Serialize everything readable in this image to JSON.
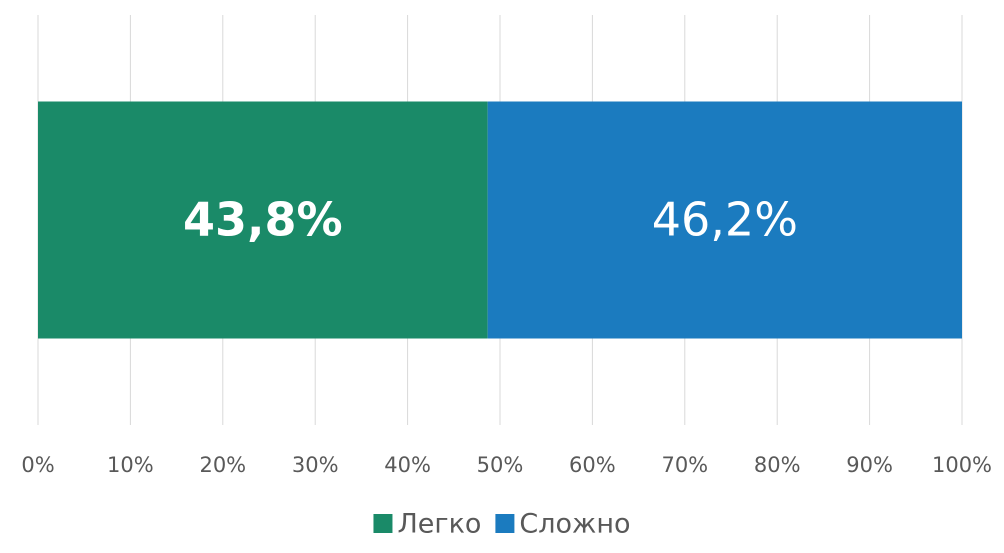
{
  "chart_data": {
    "type": "bar",
    "orientation": "horizontal",
    "percent_stacked": true,
    "categories": [
      null
    ],
    "series": [
      {
        "name": "Легко",
        "color": "#1a8a68",
        "values": [
          43.8
        ],
        "value_labels": [
          "43,8%"
        ]
      },
      {
        "name": "Сложно",
        "color": "#1b7bbf",
        "values": [
          46.2
        ],
        "value_labels": [
          "46,2%"
        ]
      }
    ],
    "xlim": [
      0,
      100
    ],
    "xticks": [
      {
        "value": 0,
        "label": "0%"
      },
      {
        "value": 10,
        "label": "10%"
      },
      {
        "value": 20,
        "label": "20%"
      },
      {
        "value": 30,
        "label": "30%"
      },
      {
        "value": 40,
        "label": "40%"
      },
      {
        "value": 50,
        "label": "50%"
      },
      {
        "value": 60,
        "label": "60%"
      },
      {
        "value": 70,
        "label": "70%"
      },
      {
        "value": 80,
        "label": "80%"
      },
      {
        "value": 90,
        "label": "90%"
      },
      {
        "value": 100,
        "label": "100%"
      }
    ],
    "grid": true,
    "legend": "bottom"
  }
}
